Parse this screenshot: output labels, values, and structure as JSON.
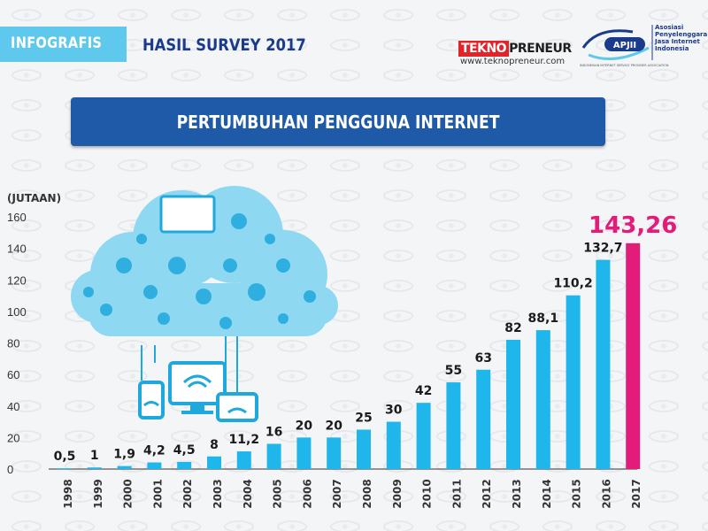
{
  "header": {
    "tag": "INFOGRAFIS",
    "title": "HASIL SURVEY 2017",
    "tekno_logo_a": "TEKNO",
    "tekno_logo_b": "PRENEUR",
    "tekno_url": "www.teknopreneur.com",
    "apjii_abbr": "APJII",
    "apjii_name": "Asosiasi Penyelenggara Jasa Internet Indonesia",
    "apjii_sub": "INDONESIAN INTERNET SERVICE PROVIDER ASSOCIATION"
  },
  "banner": {
    "title": "PERTUMBUHAN PENGGUNA INTERNET"
  },
  "colors": {
    "bar": "#1fb6ec",
    "highlight": "#e31c79",
    "banner": "#1e5aa8",
    "tag": "#5ec9ec",
    "cloud": "#7fd3f0"
  },
  "chart_data": {
    "type": "bar",
    "ylabel": "(JUTAAN)",
    "ylim": [
      0,
      160
    ],
    "yticks": [
      0,
      20,
      40,
      60,
      80,
      100,
      120,
      140,
      160
    ],
    "categories": [
      "1998",
      "1999",
      "2000",
      "2001",
      "2002",
      "2003",
      "2004",
      "2005",
      "2006",
      "2007",
      "2008",
      "2009",
      "2010",
      "2011",
      "2012",
      "2013",
      "2014",
      "2015",
      "2016",
      "2017"
    ],
    "values": [
      0.5,
      1,
      1.9,
      4.2,
      4.5,
      8,
      11.2,
      16,
      20,
      20,
      25,
      30,
      42,
      55,
      63,
      82,
      88.1,
      110.2,
      132.7,
      143.26
    ],
    "value_labels": [
      "0,5",
      "1",
      "1,9",
      "4,2",
      "4,5",
      "8",
      "11,2",
      "16",
      "20",
      "20",
      "25",
      "30",
      "42",
      "55",
      "63",
      "82",
      "88,1",
      "110,2",
      "132,7",
      "143,26"
    ],
    "highlight_index": 19,
    "grid": false,
    "legend": "none"
  }
}
